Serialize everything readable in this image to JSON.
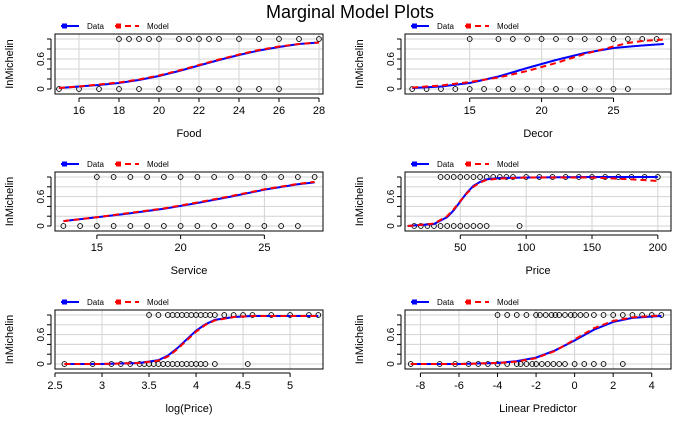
{
  "title": "Marginal Model Plots",
  "legend": {
    "data_label": "Data",
    "model_label": "Model"
  },
  "colors": {
    "data": "#0000ff",
    "model": "#ff0000",
    "grid": "#d3d3d3",
    "axis": "#000000"
  },
  "chart_data": [
    {
      "type": "line",
      "xlabel": "Food",
      "ylabel": "InMichelin",
      "xlim": [
        14.8,
        28.2
      ],
      "ylim": [
        0,
        1
      ],
      "xticks": [
        16,
        18,
        20,
        22,
        24,
        26,
        28
      ],
      "yticks": [
        0.0,
        0.6
      ],
      "legend_position": "top-left",
      "series": [
        {
          "name": "Data",
          "x": [
            15,
            16,
            17,
            18,
            19,
            20,
            21,
            22,
            23,
            24,
            25,
            26,
            27,
            28
          ],
          "y": [
            0.02,
            0.05,
            0.08,
            0.12,
            0.18,
            0.26,
            0.36,
            0.47,
            0.58,
            0.68,
            0.77,
            0.84,
            0.9,
            0.93
          ]
        },
        {
          "name": "Model",
          "x": [
            15,
            16,
            17,
            18,
            19,
            20,
            21,
            22,
            23,
            24,
            25,
            26,
            27,
            28
          ],
          "y": [
            0.02,
            0.05,
            0.09,
            0.13,
            0.19,
            0.27,
            0.37,
            0.48,
            0.59,
            0.69,
            0.78,
            0.85,
            0.9,
            0.93
          ]
        }
      ],
      "points": {
        "ones": [
          18,
          18.5,
          19,
          19.5,
          20,
          21,
          21.5,
          22,
          22.5,
          23,
          24,
          25,
          26,
          27,
          28
        ],
        "zeros": [
          15,
          16,
          17,
          18,
          19,
          20,
          21,
          22,
          23,
          24,
          25,
          26
        ]
      }
    },
    {
      "type": "line",
      "xlabel": "Decor",
      "ylabel": "InMichelin",
      "xlim": [
        10.5,
        29
      ],
      "ylim": [
        0,
        1
      ],
      "xticks": [
        15,
        20,
        25
      ],
      "yticks": [
        0.0,
        0.6
      ],
      "legend_position": "top-left",
      "series": [
        {
          "name": "Data",
          "x": [
            11,
            13,
            15,
            17,
            19,
            21,
            23,
            25,
            27,
            28.5
          ],
          "y": [
            0.02,
            0.05,
            0.12,
            0.25,
            0.42,
            0.58,
            0.72,
            0.82,
            0.87,
            0.9
          ]
        },
        {
          "name": "Model",
          "x": [
            11,
            13,
            15,
            17,
            19,
            21,
            23,
            25,
            26,
            27,
            28,
            28.5
          ],
          "y": [
            0.03,
            0.07,
            0.14,
            0.23,
            0.36,
            0.52,
            0.7,
            0.85,
            0.92,
            0.96,
            0.98,
            0.99
          ]
        }
      ],
      "points": {
        "ones": [
          15,
          17,
          18,
          19,
          20,
          21,
          22,
          23,
          24,
          25,
          26,
          27,
          28
        ],
        "zeros": [
          11,
          12,
          13,
          14,
          15,
          16,
          17,
          18,
          19,
          20,
          21,
          22,
          23,
          24,
          25,
          26
        ]
      }
    },
    {
      "type": "line",
      "xlabel": "Service",
      "ylabel": "InMichelin",
      "xlim": [
        12.5,
        28.5
      ],
      "ylim": [
        0,
        1
      ],
      "xticks": [
        15,
        20,
        25
      ],
      "yticks": [
        0.0,
        0.6
      ],
      "legend_position": "top-left",
      "series": [
        {
          "name": "Data",
          "x": [
            13,
            15,
            17,
            19,
            21,
            23,
            25,
            27,
            28
          ],
          "y": [
            0.1,
            0.18,
            0.26,
            0.35,
            0.47,
            0.6,
            0.74,
            0.85,
            0.89
          ]
        },
        {
          "name": "Model",
          "x": [
            13,
            15,
            17,
            19,
            21,
            23,
            25,
            27,
            28
          ],
          "y": [
            0.1,
            0.18,
            0.27,
            0.36,
            0.48,
            0.61,
            0.75,
            0.86,
            0.9
          ]
        }
      ],
      "points": {
        "ones": [
          15,
          16,
          17,
          18,
          19,
          20,
          21,
          22,
          23,
          24,
          25,
          26,
          27,
          28
        ],
        "zeros": [
          13,
          14,
          15,
          16,
          17,
          18,
          19,
          20,
          21,
          22,
          23,
          24,
          25,
          26,
          27
        ]
      }
    },
    {
      "type": "line",
      "xlabel": "Price",
      "ylabel": "InMichelin",
      "xlim": [
        8,
        210
      ],
      "ylim": [
        0,
        1
      ],
      "xticks": [
        50,
        100,
        150,
        200
      ],
      "yticks": [
        0.0,
        0.6
      ],
      "legend_position": "top-left",
      "series": [
        {
          "name": "Data",
          "x": [
            10,
            30,
            40,
            45,
            50,
            55,
            60,
            65,
            70,
            80,
            100,
            150,
            200
          ],
          "y": [
            0.0,
            0.04,
            0.18,
            0.32,
            0.5,
            0.68,
            0.82,
            0.9,
            0.95,
            0.98,
            0.99,
            1.0,
            1.0
          ]
        },
        {
          "name": "Model",
          "x": [
            10,
            30,
            40,
            45,
            50,
            55,
            60,
            65,
            70,
            80,
            100,
            150,
            180,
            200
          ],
          "y": [
            0.0,
            0.05,
            0.2,
            0.34,
            0.51,
            0.67,
            0.8,
            0.89,
            0.94,
            0.97,
            0.99,
            0.99,
            0.95,
            0.92
          ]
        }
      ],
      "points": {
        "ones": [
          35,
          40,
          45,
          50,
          55,
          60,
          65,
          70,
          75,
          80,
          85,
          90,
          100,
          110,
          120,
          130,
          140,
          150,
          160,
          170,
          180,
          190,
          200
        ],
        "zeros": [
          15,
          20,
          25,
          30,
          35,
          40,
          45,
          50,
          55,
          60,
          65,
          70,
          95
        ]
      }
    },
    {
      "type": "line",
      "xlabel": "log(Price)",
      "ylabel": "InMichelin",
      "xlim": [
        2.5,
        5.35
      ],
      "ylim": [
        0,
        1
      ],
      "xticks": [
        2.5,
        3.0,
        3.5,
        4.0,
        4.5,
        5.0
      ],
      "yticks": [
        0.0,
        0.6
      ],
      "legend_position": "top-left",
      "series": [
        {
          "name": "Data",
          "x": [
            2.6,
            3.0,
            3.4,
            3.6,
            3.7,
            3.8,
            3.9,
            4.0,
            4.1,
            4.2,
            4.4,
            4.6,
            5.0,
            5.3
          ],
          "y": [
            0.0,
            0.0,
            0.02,
            0.08,
            0.17,
            0.32,
            0.5,
            0.68,
            0.81,
            0.9,
            0.96,
            0.98,
            0.98,
            0.98
          ]
        },
        {
          "name": "Model",
          "x": [
            2.6,
            3.0,
            3.4,
            3.6,
            3.7,
            3.8,
            3.9,
            4.0,
            4.1,
            4.2,
            4.4,
            4.6,
            5.0,
            5.3
          ],
          "y": [
            0.0,
            0.0,
            0.02,
            0.07,
            0.15,
            0.3,
            0.48,
            0.66,
            0.8,
            0.89,
            0.96,
            0.98,
            0.98,
            0.98
          ]
        }
      ],
      "points": {
        "ones": [
          3.5,
          3.6,
          3.7,
          3.75,
          3.8,
          3.85,
          3.9,
          3.95,
          4.0,
          4.05,
          4.1,
          4.15,
          4.2,
          4.3,
          4.4,
          4.5,
          4.6,
          4.8,
          5.0,
          5.2,
          5.3
        ],
        "zeros": [
          2.6,
          2.9,
          3.1,
          3.2,
          3.3,
          3.4,
          3.45,
          3.5,
          3.55,
          3.6,
          3.65,
          3.7,
          3.75,
          3.8,
          3.85,
          3.9,
          3.95,
          4.0,
          4.05,
          4.1,
          4.2,
          4.55
        ]
      }
    },
    {
      "type": "line",
      "xlabel": "Linear Predictor",
      "ylabel": "InMichelin",
      "xlim": [
        -8.8,
        5
      ],
      "ylim": [
        0,
        1
      ],
      "xticks": [
        -8,
        -6,
        -4,
        -2,
        0,
        2,
        4
      ],
      "yticks": [
        0.0,
        0.6
      ],
      "legend_position": "top-left",
      "series": [
        {
          "name": "Data",
          "x": [
            -8.5,
            -6,
            -4,
            -3,
            -2,
            -1,
            0,
            1,
            2,
            3,
            4,
            4.5
          ],
          "y": [
            0.0,
            0.0,
            0.02,
            0.06,
            0.13,
            0.28,
            0.48,
            0.7,
            0.86,
            0.94,
            0.97,
            0.98
          ]
        },
        {
          "name": "Model",
          "x": [
            -8.5,
            -6,
            -4,
            -3,
            -2,
            -1,
            0,
            1,
            2,
            3,
            4,
            4.5
          ],
          "y": [
            0.0,
            0.0,
            0.02,
            0.05,
            0.12,
            0.27,
            0.5,
            0.73,
            0.88,
            0.95,
            0.98,
            0.99
          ]
        }
      ],
      "points": {
        "ones": [
          -4,
          -3.5,
          -3,
          -2.5,
          -2,
          -1.8,
          -1.5,
          -1.2,
          -1,
          -0.8,
          -0.5,
          -0.2,
          0,
          0.3,
          0.6,
          1,
          1.5,
          2,
          2.5,
          3,
          3.5,
          4,
          4.5
        ],
        "zeros": [
          -8.5,
          -7,
          -6.2,
          -5.5,
          -5,
          -4.5,
          -4,
          -3.5,
          -3,
          -2.8,
          -2.5,
          -2.2,
          -2,
          -1.7,
          -1.4,
          -1.1,
          -0.8,
          -0.5,
          0,
          0.5,
          1,
          1.5,
          2.5
        ]
      }
    }
  ]
}
